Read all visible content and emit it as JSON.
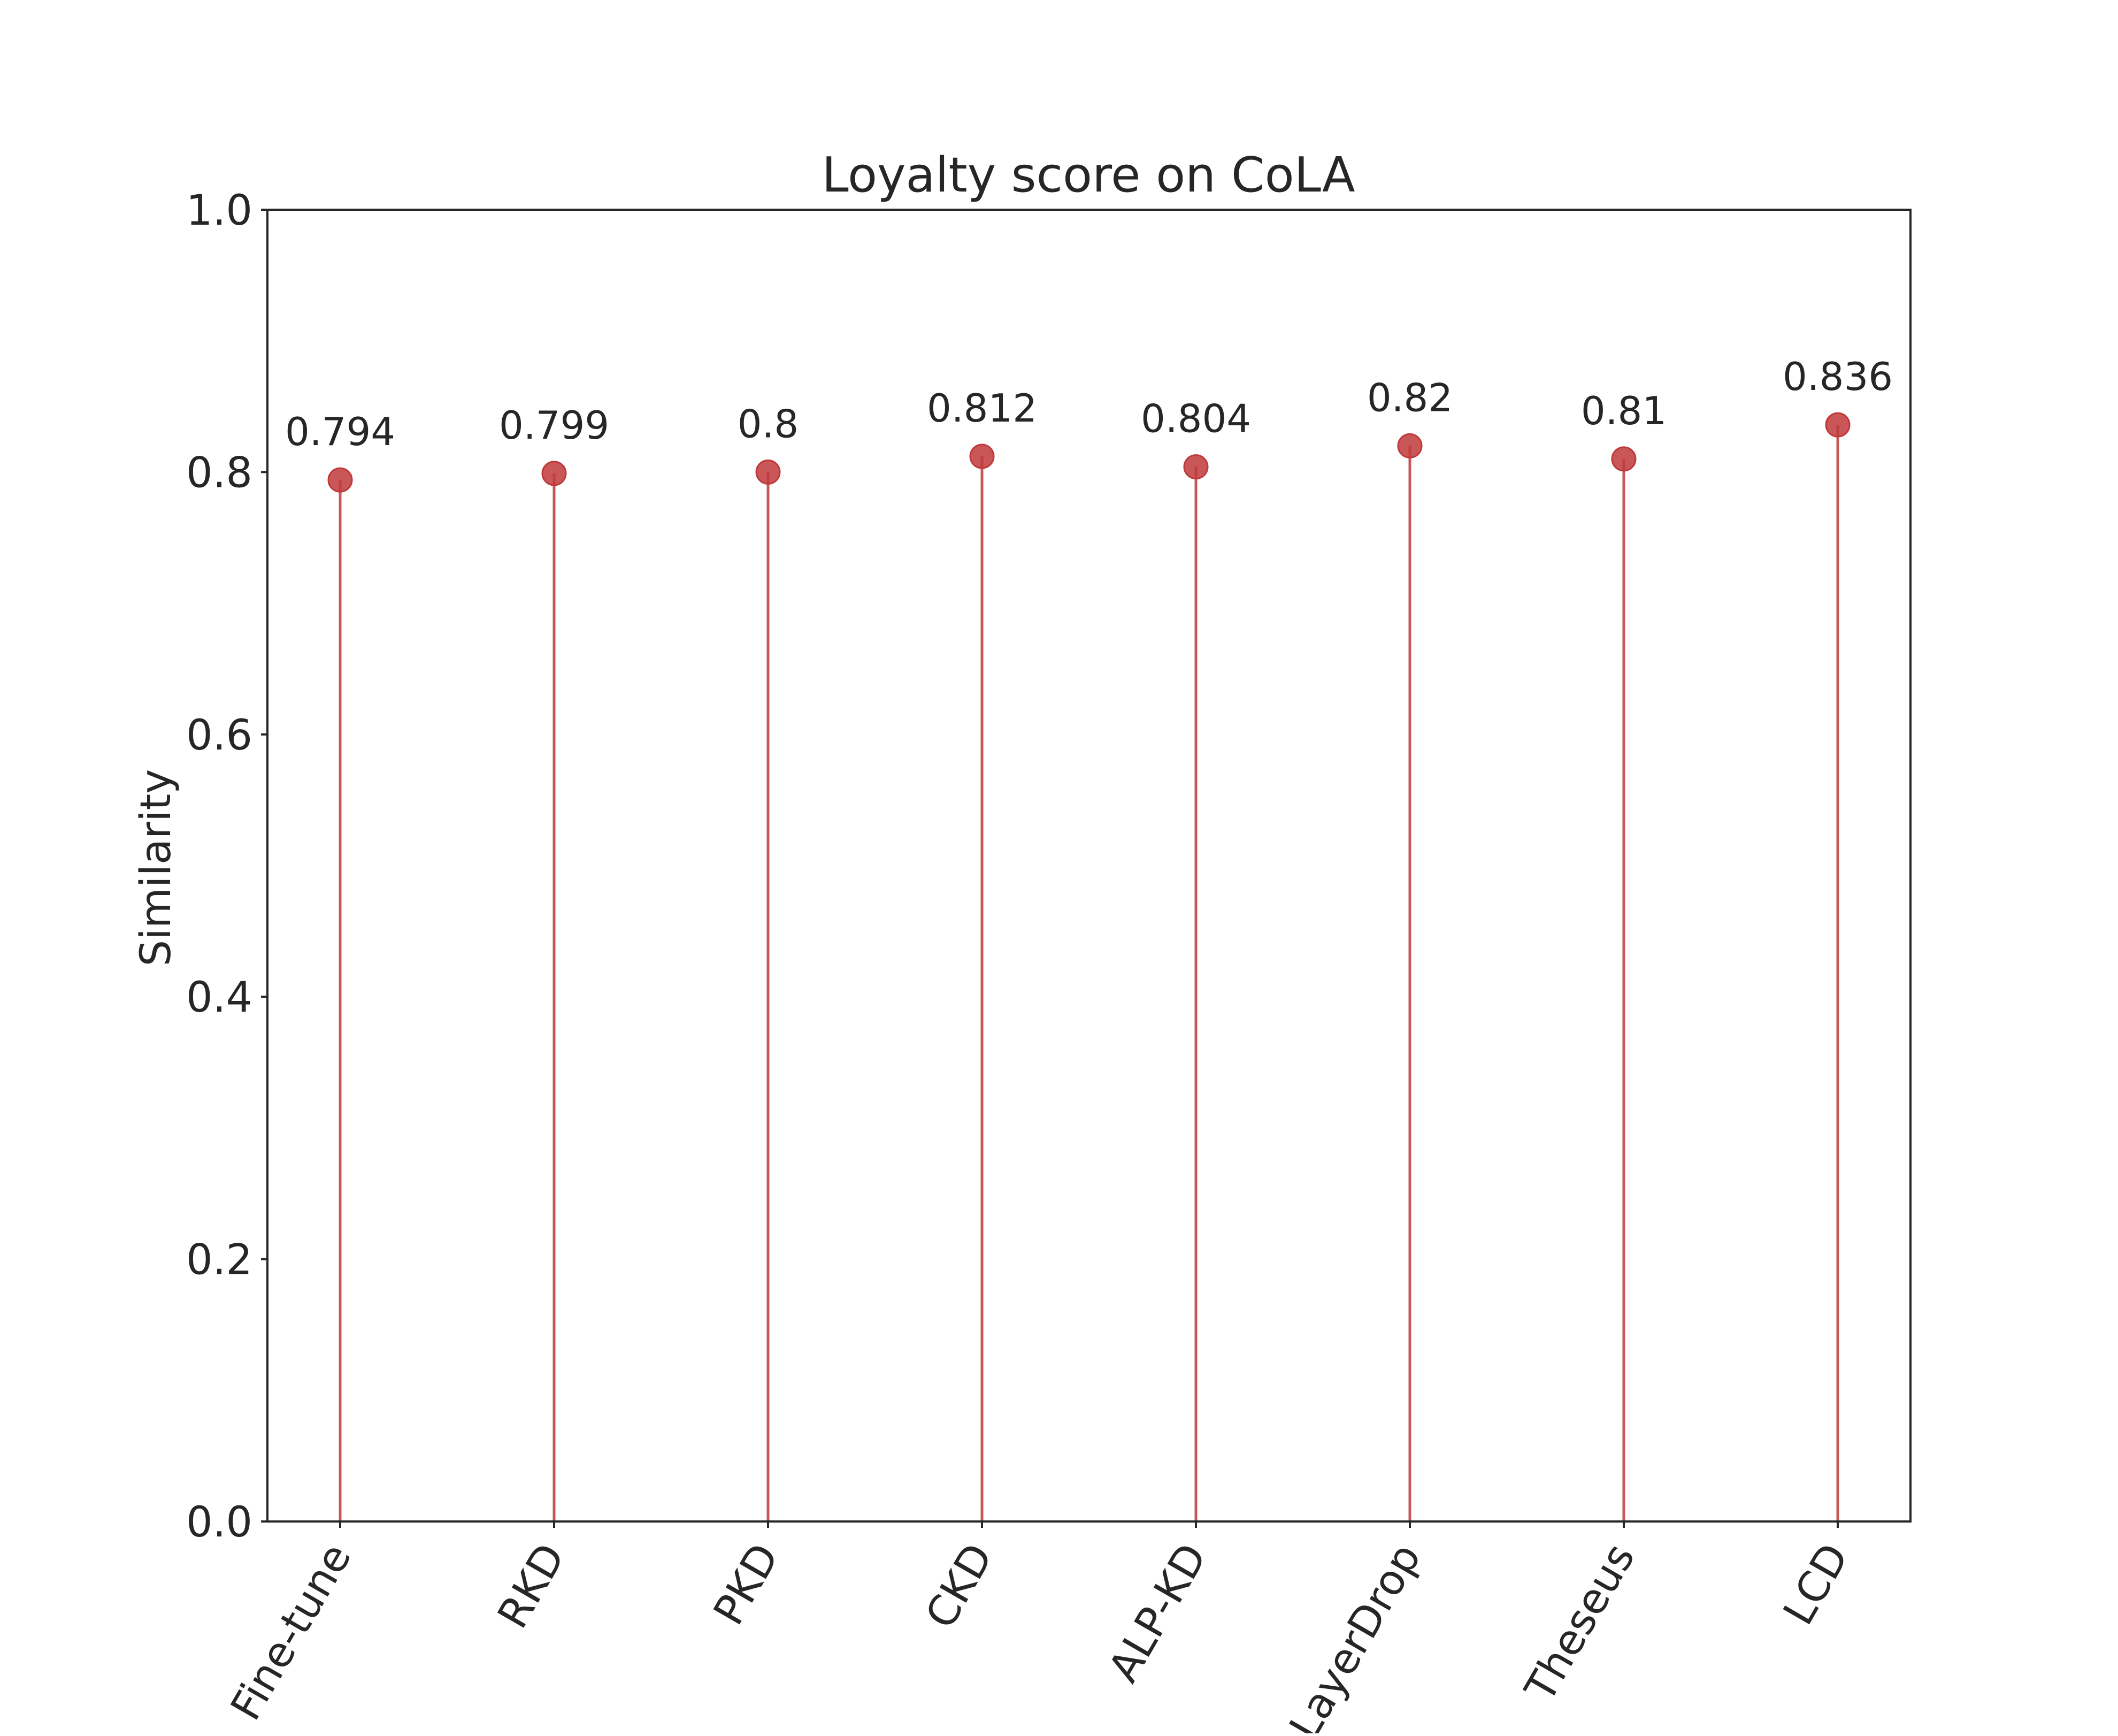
{
  "chart_data": {
    "type": "lollipop",
    "title": "Loyalty score on CoLA",
    "xlabel": "",
    "ylabel": "Similarity",
    "categories": [
      "Fine-tune",
      "RKD",
      "PKD",
      "CKD",
      "ALP-KD",
      "LayerDrop",
      "Theseus",
      "LCD"
    ],
    "values": [
      0.794,
      0.799,
      0.8,
      0.812,
      0.804,
      0.82,
      0.81,
      0.836
    ],
    "data_labels": [
      "0.794",
      "0.799",
      "0.8",
      "0.812",
      "0.804",
      "0.82",
      "0.81",
      "0.836"
    ],
    "ylim": [
      0.0,
      1.0
    ],
    "yticks": [
      "0.0",
      "0.2",
      "0.4",
      "0.6",
      "0.8",
      "1.0"
    ],
    "x_tick_rotation_deg": 60,
    "grid": false,
    "legend": "none",
    "colors": {
      "marker": "#c0393b",
      "stem": "#c0393b",
      "axes": "#262626",
      "text": "#262626"
    }
  }
}
